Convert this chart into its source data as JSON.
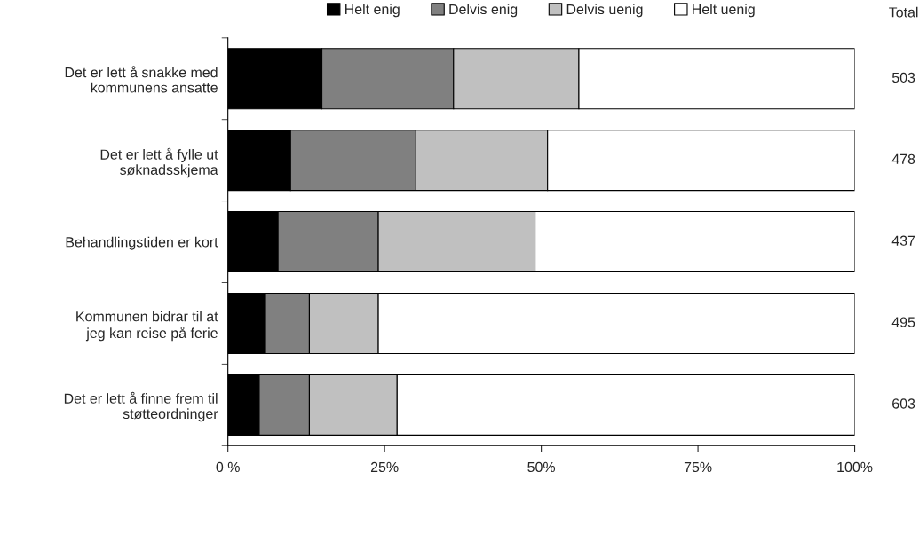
{
  "chart_data": {
    "type": "bar",
    "orientation": "horizontal",
    "stacked": true,
    "categories": [
      "Det er lett å snakke med\nkommunens ansatte",
      "Det er lett å fylle ut\nsøknadsskjema",
      "Behandlingstiden er kort",
      "Kommunen bidrar til at\njeg kan reise på ferie",
      "Det er lett å finne frem til\nstøtteordninger"
    ],
    "series": [
      {
        "name": "Helt enig",
        "color": "#000000",
        "values": [
          15,
          10,
          8,
          6,
          5
        ]
      },
      {
        "name": "Delvis enig",
        "color": "#808080",
        "values": [
          21,
          20,
          16,
          7,
          8
        ]
      },
      {
        "name": "Delvis uenig",
        "color": "#c0c0c0",
        "values": [
          20,
          21,
          25,
          11,
          14
        ]
      },
      {
        "name": "Helt uenig",
        "color": "#ffffff",
        "values": [
          44,
          49,
          51,
          76,
          73
        ]
      }
    ],
    "annotations": [
      "Total",
      "503",
      "478",
      "437",
      "495",
      "603"
    ],
    "xlim": [
      0,
      100
    ],
    "xticks": [
      {
        "value": 0,
        "label": "0 %"
      },
      {
        "value": 25,
        "label": "25%"
      },
      {
        "value": 50,
        "label": "50%"
      },
      {
        "value": 75,
        "label": "75%"
      },
      {
        "value": 100,
        "label": "100%"
      }
    ],
    "grid": false,
    "legend": "top"
  }
}
